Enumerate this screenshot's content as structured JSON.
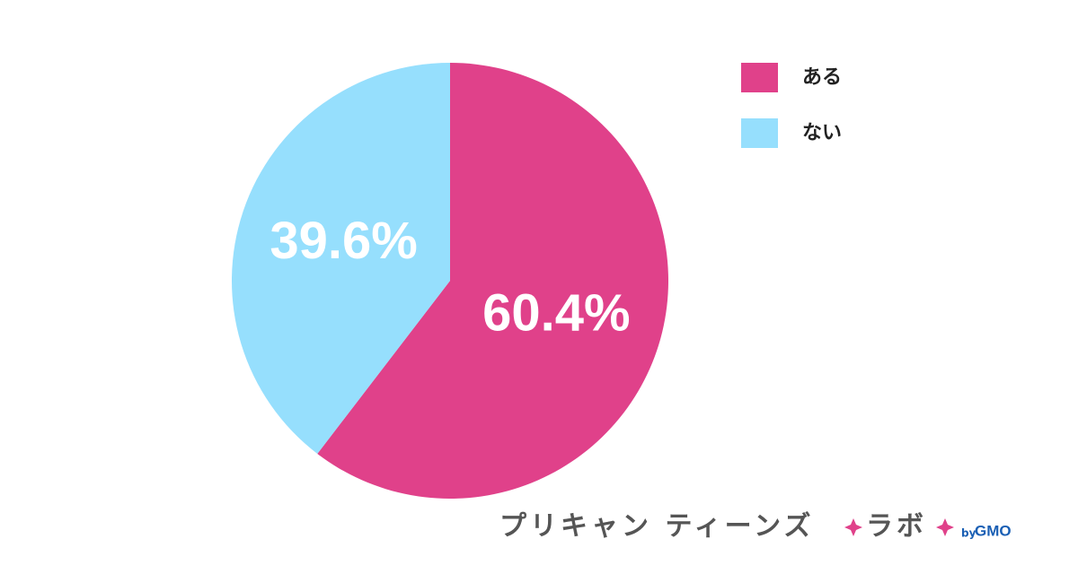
{
  "chart_data": {
    "type": "pie",
    "categories": [
      "ある",
      "ない"
    ],
    "values": [
      60.4,
      39.6
    ],
    "value_labels": [
      "60.4%",
      "39.6%"
    ],
    "colors": [
      "#e0418a",
      "#96dffd"
    ],
    "start_angle": "top",
    "direction": "clockwise",
    "legend": "top-right"
  },
  "logo": {
    "name": "プリキャン ティーンズ",
    "lab": "ラボ",
    "by": "by",
    "company": "GMO"
  }
}
